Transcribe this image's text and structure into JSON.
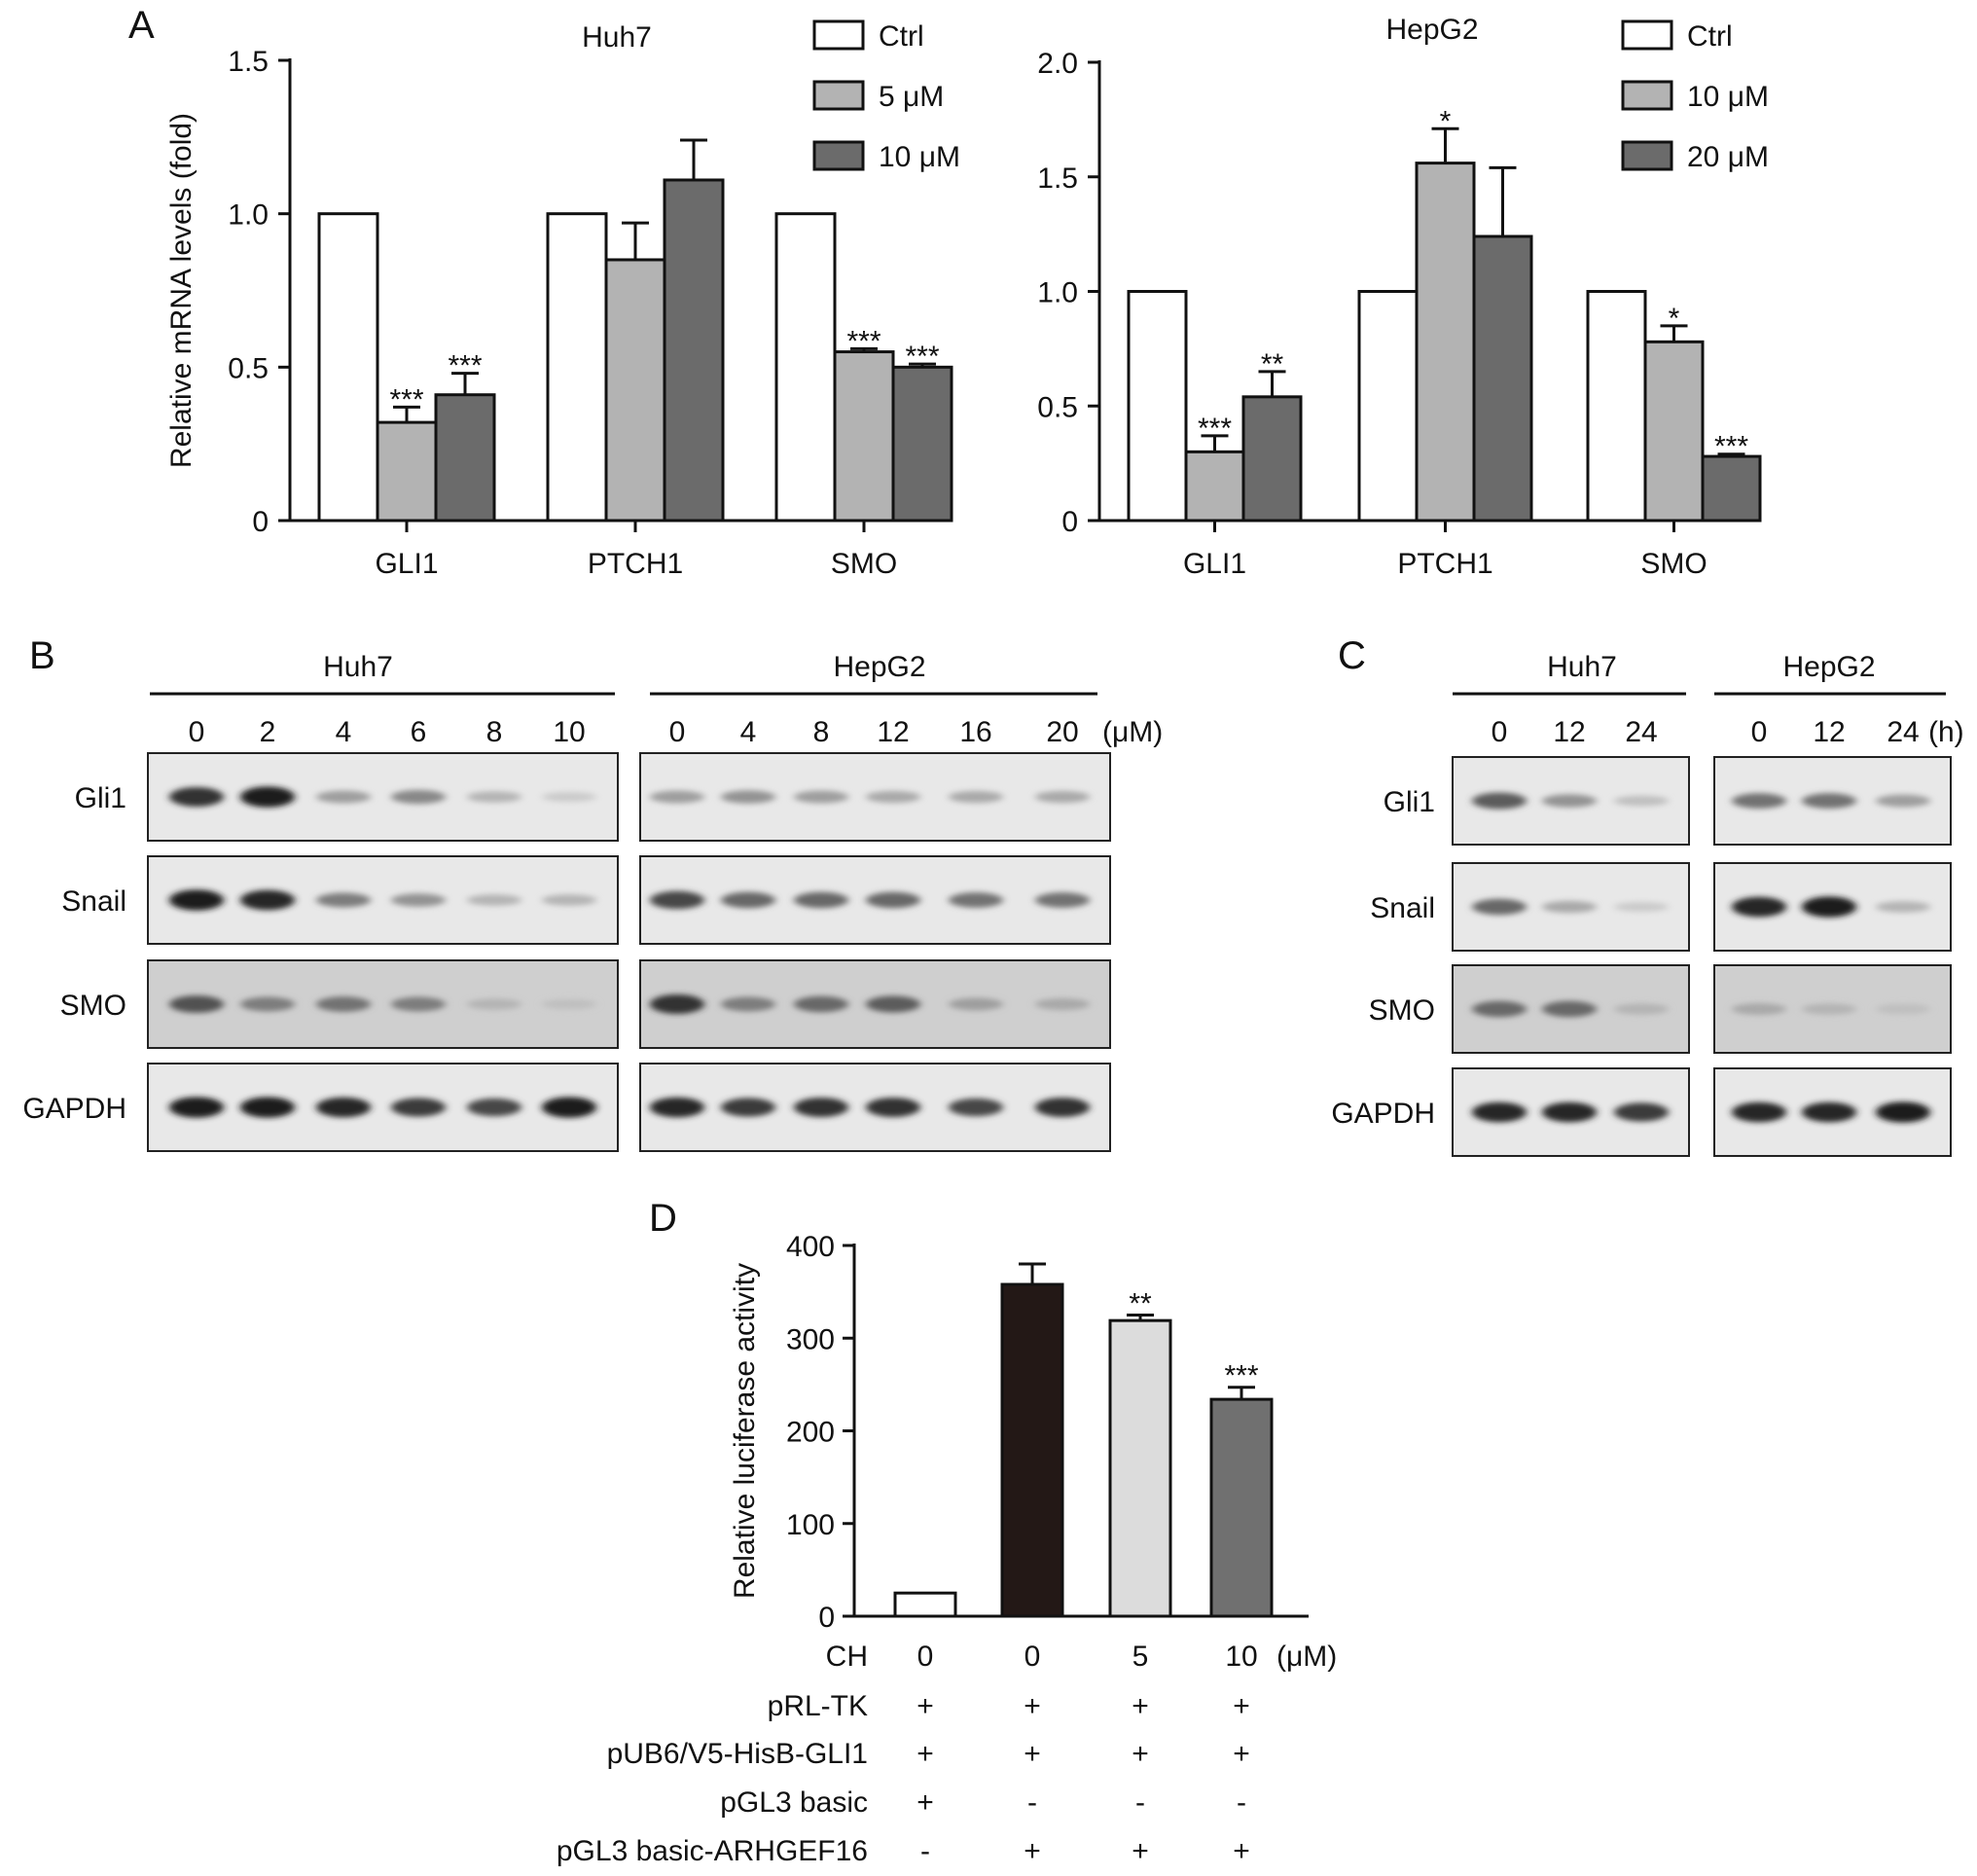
{
  "panels": {
    "a": "A",
    "b": "B",
    "c": "C",
    "d": "D"
  },
  "chart_data": [
    {
      "id": "A_huh7",
      "type": "bar",
      "title": "Huh7",
      "ylabel": "Relative mRNA levels (fold)",
      "xlabel": "",
      "ylim": [
        0,
        1.5
      ],
      "yticks": [
        "0",
        "0.5",
        "1.0",
        "1.5"
      ],
      "categories": [
        "GLI1",
        "PTCH1",
        "SMO"
      ],
      "series": [
        {
          "name": "Ctrl",
          "color": "#ffffff",
          "values": [
            1.0,
            1.0,
            1.0
          ],
          "errors": [
            0,
            0,
            0
          ],
          "stars": [
            "",
            "",
            ""
          ]
        },
        {
          "name": "5 μM",
          "color": "#b3b3b3",
          "values": [
            0.32,
            0.85,
            0.55
          ],
          "errors": [
            0.05,
            0.12,
            0.01
          ],
          "stars": [
            "***",
            "",
            "***"
          ]
        },
        {
          "name": "10 μM",
          "color": "#6b6b6b",
          "values": [
            0.41,
            1.11,
            0.5
          ],
          "errors": [
            0.07,
            0.13,
            0.01
          ],
          "stars": [
            "***",
            "",
            "***"
          ]
        }
      ]
    },
    {
      "id": "A_hepg2",
      "type": "bar",
      "title": "HepG2",
      "ylabel": "",
      "xlabel": "",
      "ylim": [
        0,
        2.0
      ],
      "yticks": [
        "0",
        "0.5",
        "1.0",
        "1.5",
        "2.0"
      ],
      "categories": [
        "GLI1",
        "PTCH1",
        "SMO"
      ],
      "series": [
        {
          "name": "Ctrl",
          "color": "#ffffff",
          "values": [
            1.0,
            1.0,
            1.0
          ],
          "errors": [
            0,
            0,
            0
          ],
          "stars": [
            "",
            "",
            ""
          ]
        },
        {
          "name": "10 μM",
          "color": "#b3b3b3",
          "values": [
            0.3,
            1.56,
            0.78
          ],
          "errors": [
            0.07,
            0.15,
            0.07
          ],
          "stars": [
            "***",
            "*",
            "*"
          ]
        },
        {
          "name": "20 μM",
          "color": "#6b6b6b",
          "values": [
            0.54,
            1.24,
            0.28
          ],
          "errors": [
            0.11,
            0.3,
            0.01
          ],
          "stars": [
            "**",
            "",
            "***"
          ]
        }
      ]
    },
    {
      "id": "D_luciferase",
      "type": "bar",
      "title": "",
      "ylabel": "Relative luciferase activity",
      "xlabel": "",
      "ylim": [
        0,
        400
      ],
      "yticks": [
        "0",
        "100",
        "200",
        "300",
        "400"
      ],
      "categories": [
        "0",
        "0",
        "5",
        "10"
      ],
      "values": [
        25,
        358,
        319,
        234
      ],
      "errors": [
        0,
        22,
        6,
        13
      ],
      "stars": [
        "",
        "",
        "**",
        "***"
      ],
      "colors": [
        "#ffffff",
        "#231816",
        "#dcdcdc",
        "#707070"
      ],
      "row_header_ch": "CH",
      "unit": "(μM)",
      "condition_rows": [
        {
          "label": "pRL-TK",
          "marks": [
            "+",
            "+",
            "+",
            "+"
          ]
        },
        {
          "label": "pUB6/V5-HisB-GLI1",
          "marks": [
            "+",
            "+",
            "+",
            "+"
          ]
        },
        {
          "label": "pGL3 basic",
          "marks": [
            "+",
            "-",
            "-",
            "-"
          ]
        },
        {
          "label": "pGL3 basic-ARHGEF16",
          "marks": [
            "-",
            "+",
            "+",
            "+"
          ]
        }
      ]
    }
  ],
  "blots": {
    "B": {
      "groups": [
        {
          "name": "Huh7",
          "lanes": [
            "0",
            "2",
            "4",
            "6",
            "8",
            "10"
          ]
        },
        {
          "name": "HepG2",
          "lanes": [
            "0",
            "4",
            "8",
            "12",
            "16",
            "20"
          ]
        }
      ],
      "unit": "(μM)",
      "rows": [
        {
          "label": "Gli1",
          "intensities": [
            [
              0.85,
              0.95,
              0.35,
              0.45,
              0.25,
              0.15
            ],
            [
              0.35,
              0.4,
              0.35,
              0.3,
              0.3,
              0.3
            ]
          ]
        },
        {
          "label": "Snail",
          "intensities": [
            [
              0.95,
              0.9,
              0.5,
              0.4,
              0.25,
              0.25
            ],
            [
              0.75,
              0.6,
              0.6,
              0.6,
              0.55,
              0.55
            ]
          ]
        },
        {
          "label": "SMO",
          "intensities": [
            [
              0.7,
              0.5,
              0.55,
              0.5,
              0.25,
              0.2
            ],
            [
              0.85,
              0.5,
              0.6,
              0.65,
              0.35,
              0.3
            ]
          ]
        },
        {
          "label": "GAPDH",
          "intensities": [
            [
              0.95,
              0.95,
              0.9,
              0.8,
              0.75,
              0.95
            ],
            [
              0.9,
              0.8,
              0.85,
              0.85,
              0.75,
              0.85
            ]
          ]
        }
      ]
    },
    "C": {
      "groups": [
        {
          "name": "Huh7",
          "lanes": [
            "0",
            "12",
            "24"
          ]
        },
        {
          "name": "HepG2",
          "lanes": [
            "0",
            "12",
            "24"
          ]
        }
      ],
      "unit": "(h)",
      "rows": [
        {
          "label": "Gli1",
          "intensities": [
            [
              0.65,
              0.4,
              0.2
            ],
            [
              0.55,
              0.55,
              0.35
            ]
          ]
        },
        {
          "label": "Snail",
          "intensities": [
            [
              0.6,
              0.3,
              0.15
            ],
            [
              0.9,
              0.95,
              0.25
            ]
          ]
        },
        {
          "label": "SMO",
          "intensities": [
            [
              0.6,
              0.6,
              0.25
            ],
            [
              0.3,
              0.25,
              0.2
            ]
          ]
        },
        {
          "label": "GAPDH",
          "intensities": [
            [
              0.9,
              0.9,
              0.8
            ],
            [
              0.9,
              0.9,
              0.95
            ]
          ]
        }
      ]
    }
  }
}
